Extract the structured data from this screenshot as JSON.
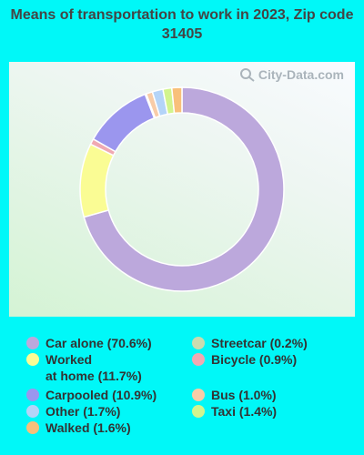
{
  "chart_data": {
    "type": "pie",
    "title": "Means of transportation to work in 2023, Zip code 31405",
    "slices": [
      {
        "label": "Car alone (70.6%)",
        "value": 70.6,
        "color": "#bca8dc"
      },
      {
        "label": "Worked\nat home (11.7%)",
        "value": 11.7,
        "color": "#fafc94"
      },
      {
        "label": "Bicycle (0.9%)",
        "value": 0.9,
        "color": "#f0a9b2"
      },
      {
        "label": "Carpooled (10.9%)",
        "value": 10.9,
        "color": "#9b96ee"
      },
      {
        "label": "Streetcar (0.2%)",
        "value": 0.2,
        "color": "#c8dcb0"
      },
      {
        "label": "Bus (1.0%)",
        "value": 1.0,
        "color": "#f8cca8"
      },
      {
        "label": "Other (1.7%)",
        "value": 1.7,
        "color": "#b4d4f8"
      },
      {
        "label": "Taxi (1.4%)",
        "value": 1.4,
        "color": "#d2f48e"
      },
      {
        "label": "Walked (1.6%)",
        "value": 1.6,
        "color": "#f8c07a"
      }
    ],
    "legend_order_left": [
      "Car alone (70.6%)",
      "Worked\nat home (11.7%)",
      "Carpooled (10.9%)",
      "Other (1.7%)",
      "Walked (1.6%)"
    ],
    "legend_order_right": [
      "Streetcar (0.2%)",
      "Bicycle (0.9%)",
      "Bus (1.0%)",
      "Taxi (1.4%)"
    ]
  },
  "watermark": {
    "text": "City-Data.com"
  }
}
